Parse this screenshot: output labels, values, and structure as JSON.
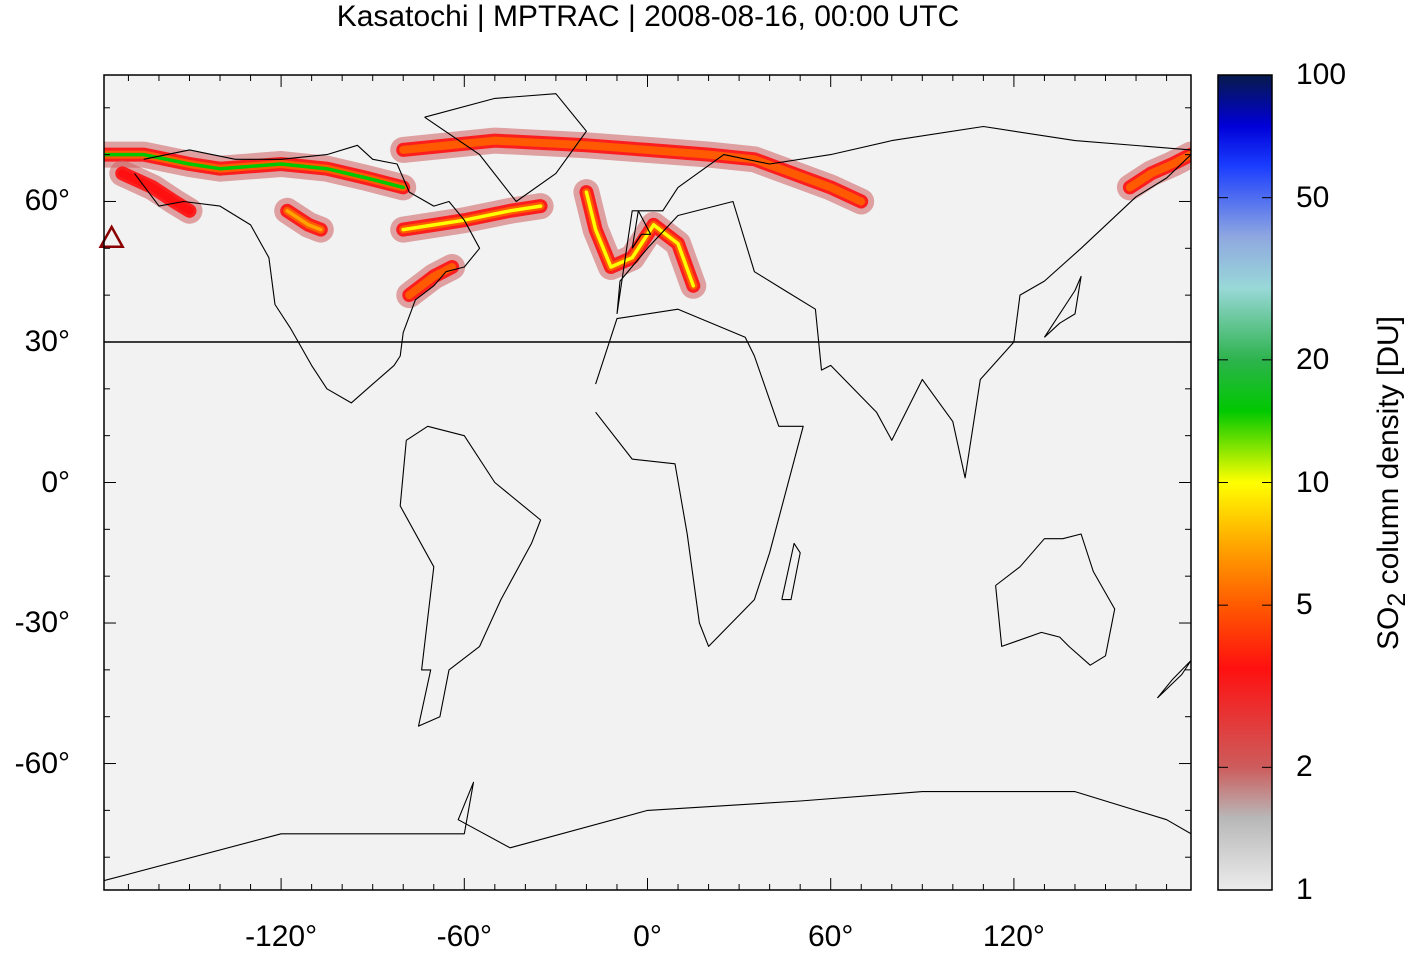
{
  "title": "Kasatochi | MPTRAC | 2008-08-16, 00:00 UTC",
  "map": {
    "projection": "equirectangular",
    "lon_range": [
      -178,
      178
    ],
    "lat_range": [
      -87,
      87
    ],
    "background_color": "#f2f2f2",
    "reference_latitude": 30,
    "volcano_marker": {
      "name": "Kasatochi",
      "lon": -175.5,
      "lat": 52.2,
      "symbol": "triangle",
      "color": "#8b0000"
    }
  },
  "x_ticks": [
    {
      "value": -120,
      "label": "-120°"
    },
    {
      "value": -60,
      "label": "-60°"
    },
    {
      "value": 0,
      "label": "0°"
    },
    {
      "value": 60,
      "label": "60°"
    },
    {
      "value": 120,
      "label": "120°"
    }
  ],
  "y_ticks": [
    {
      "value": 60,
      "label": "60°"
    },
    {
      "value": 30,
      "label": "30°"
    },
    {
      "value": 0,
      "label": "0°"
    },
    {
      "value": -30,
      "label": "-30°"
    },
    {
      "value": -60,
      "label": "-60°"
    }
  ],
  "colorbar": {
    "title_main": "SO",
    "title_sub": "2",
    "title_rest": " column density [DU]",
    "scale": "log",
    "range": [
      1,
      100
    ],
    "ticks": [
      {
        "value": 100,
        "label": "100"
      },
      {
        "value": 50,
        "label": "50"
      },
      {
        "value": 20,
        "label": "20"
      },
      {
        "value": 10,
        "label": "10"
      },
      {
        "value": 5,
        "label": "5"
      },
      {
        "value": 2,
        "label": "2"
      },
      {
        "value": 1,
        "label": "1"
      }
    ],
    "stops": [
      {
        "value": 1,
        "color": "#ececec"
      },
      {
        "value": 1.5,
        "color": "#b8b8b8"
      },
      {
        "value": 2,
        "color": "#cd5c5c"
      },
      {
        "value": 3.5,
        "color": "#ff1010"
      },
      {
        "value": 5,
        "color": "#ff5a00"
      },
      {
        "value": 7,
        "color": "#ffa500"
      },
      {
        "value": 10,
        "color": "#ffff00"
      },
      {
        "value": 15,
        "color": "#00c800"
      },
      {
        "value": 20,
        "color": "#2db34d"
      },
      {
        "value": 30,
        "color": "#99d8d8"
      },
      {
        "value": 40,
        "color": "#8fa8e0"
      },
      {
        "value": 60,
        "color": "#1a3cff"
      },
      {
        "value": 75,
        "color": "#0000d8"
      },
      {
        "value": 100,
        "color": "#071a4a"
      }
    ]
  },
  "plumes": [
    {
      "id": "alaska-yukon",
      "lon": [
        -178,
        -165,
        -150,
        -140,
        -120,
        -105,
        -92,
        -80
      ],
      "lat": [
        70,
        70,
        68,
        67,
        68,
        67,
        65,
        63
      ],
      "peak": 14
    },
    {
      "id": "aleutian-arc",
      "lon": [
        -172,
        -162,
        -155,
        -150
      ],
      "lat": [
        66,
        63,
        60,
        58
      ],
      "peak": 3
    },
    {
      "id": "hudson-labrador",
      "lon": [
        -80,
        -70,
        -60,
        -45,
        -35
      ],
      "lat": [
        54,
        55,
        56,
        58,
        59
      ],
      "peak": 9
    },
    {
      "id": "canada-west-blob",
      "lon": [
        -118,
        -111,
        -107
      ],
      "lat": [
        58,
        55,
        54
      ],
      "peak": 6
    },
    {
      "id": "newfoundland",
      "lon": [
        -78,
        -70,
        -64
      ],
      "lat": [
        40,
        44,
        46
      ],
      "peak": 4
    },
    {
      "id": "arctic-greenland",
      "lon": [
        -80,
        -50,
        -20,
        0,
        20,
        35,
        60,
        70
      ],
      "lat": [
        71,
        73,
        72,
        71,
        70,
        69,
        63,
        60
      ],
      "peak": 4
    },
    {
      "id": "north-atlantic-europe",
      "lon": [
        -20,
        -17,
        -12,
        -5,
        2,
        10,
        15
      ],
      "lat": [
        62,
        54,
        46,
        48,
        55,
        51,
        42
      ],
      "peak": 8
    },
    {
      "id": "east-siberia",
      "lon": [
        158,
        165,
        172,
        178
      ],
      "lat": [
        63,
        66,
        68,
        70
      ],
      "peak": 4
    }
  ],
  "coastlines": [
    {
      "id": "north-america",
      "lon": [
        -168,
        -160,
        -152,
        -140,
        -130,
        -124,
        -122,
        -117,
        -110,
        -105,
        -97,
        -90,
        -83,
        -81,
        -80,
        -76,
        -70,
        -66,
        -60,
        -55,
        -60,
        -65,
        -70,
        -78,
        -82,
        -90,
        -95,
        -105,
        -120,
        -135,
        -150,
        -165
      ],
      "lat": [
        66,
        59,
        60,
        59,
        55,
        48,
        38,
        33,
        25,
        20,
        17,
        21,
        25,
        27,
        32,
        39,
        42,
        45,
        46,
        50,
        56,
        60,
        59,
        62,
        68,
        69,
        72,
        70,
        69,
        69,
        71,
        69
      ]
    },
    {
      "id": "south-america",
      "lon": [
        -79,
        -72,
        -60,
        -50,
        -35,
        -38,
        -48,
        -55,
        -65,
        -68,
        -75,
        -71,
        -74,
        -70,
        -81,
        -79
      ],
      "lat": [
        9,
        12,
        10,
        0,
        -8,
        -13,
        -25,
        -35,
        -40,
        -50,
        -52,
        -40,
        -40,
        -18,
        -5,
        9
      ]
    },
    {
      "id": "africa",
      "lon": [
        -17,
        -10,
        10,
        32,
        35,
        43,
        51,
        40,
        35,
        20,
        17,
        13,
        9,
        -5,
        -17
      ],
      "lat": [
        21,
        35,
        37,
        31,
        27,
        12,
        12,
        -15,
        -25,
        -35,
        -30,
        -11,
        4,
        5,
        15
      ]
    },
    {
      "id": "eurasia",
      "lon": [
        -10,
        -9,
        0,
        10,
        28,
        35,
        45,
        55,
        57,
        60,
        75,
        80,
        90,
        100,
        104,
        109,
        120,
        122,
        130,
        142,
        160,
        170,
        178,
        178,
        140,
        110,
        80,
        60,
        40,
        25,
        10,
        5,
        -5,
        -10
      ],
      "lat": [
        36,
        43,
        50,
        57,
        60,
        45,
        41,
        37,
        24,
        25,
        15,
        9,
        22,
        13,
        1,
        22,
        30,
        40,
        43,
        50,
        61,
        65,
        70,
        71,
        73,
        76,
        73,
        70,
        68,
        70,
        63,
        58,
        58,
        36
      ]
    },
    {
      "id": "greenland",
      "lon": [
        -73,
        -55,
        -43,
        -30,
        -20,
        -30,
        -50,
        -73
      ],
      "lat": [
        78,
        70,
        60,
        66,
        75,
        83,
        82,
        78
      ]
    },
    {
      "id": "australia",
      "lon": [
        114,
        122,
        130,
        136,
        142,
        146,
        153,
        150,
        145,
        138,
        135,
        129,
        116,
        114
      ],
      "lat": [
        -22,
        -18,
        -12,
        -12,
        -11,
        -19,
        -27,
        -37,
        -39,
        -35,
        -33,
        -32,
        -35,
        -22
      ]
    },
    {
      "id": "antarctica",
      "lon": [
        -178,
        -120,
        -60,
        -57,
        -62,
        -45,
        0,
        50,
        90,
        140,
        170,
        178
      ],
      "lat": [
        -85,
        -75,
        -75,
        -64,
        -72,
        -78,
        -70,
        -68,
        -66,
        -66,
        -72,
        -75
      ]
    },
    {
      "id": "british-isles",
      "lon": [
        -5,
        -2,
        1,
        -3,
        -5
      ],
      "lat": [
        50,
        53,
        53,
        58,
        50
      ]
    },
    {
      "id": "japan",
      "lon": [
        130,
        135,
        140,
        142,
        140,
        130
      ],
      "lat": [
        31,
        34,
        36,
        44,
        41,
        31
      ]
    },
    {
      "id": "madagascar",
      "lon": [
        44,
        47,
        50,
        48,
        44
      ],
      "lat": [
        -25,
        -25,
        -15,
        -13,
        -25
      ]
    },
    {
      "id": "new-zealand",
      "lon": [
        167,
        172,
        178,
        175,
        167
      ],
      "lat": [
        -46,
        -42,
        -38,
        -41,
        -46
      ]
    }
  ]
}
